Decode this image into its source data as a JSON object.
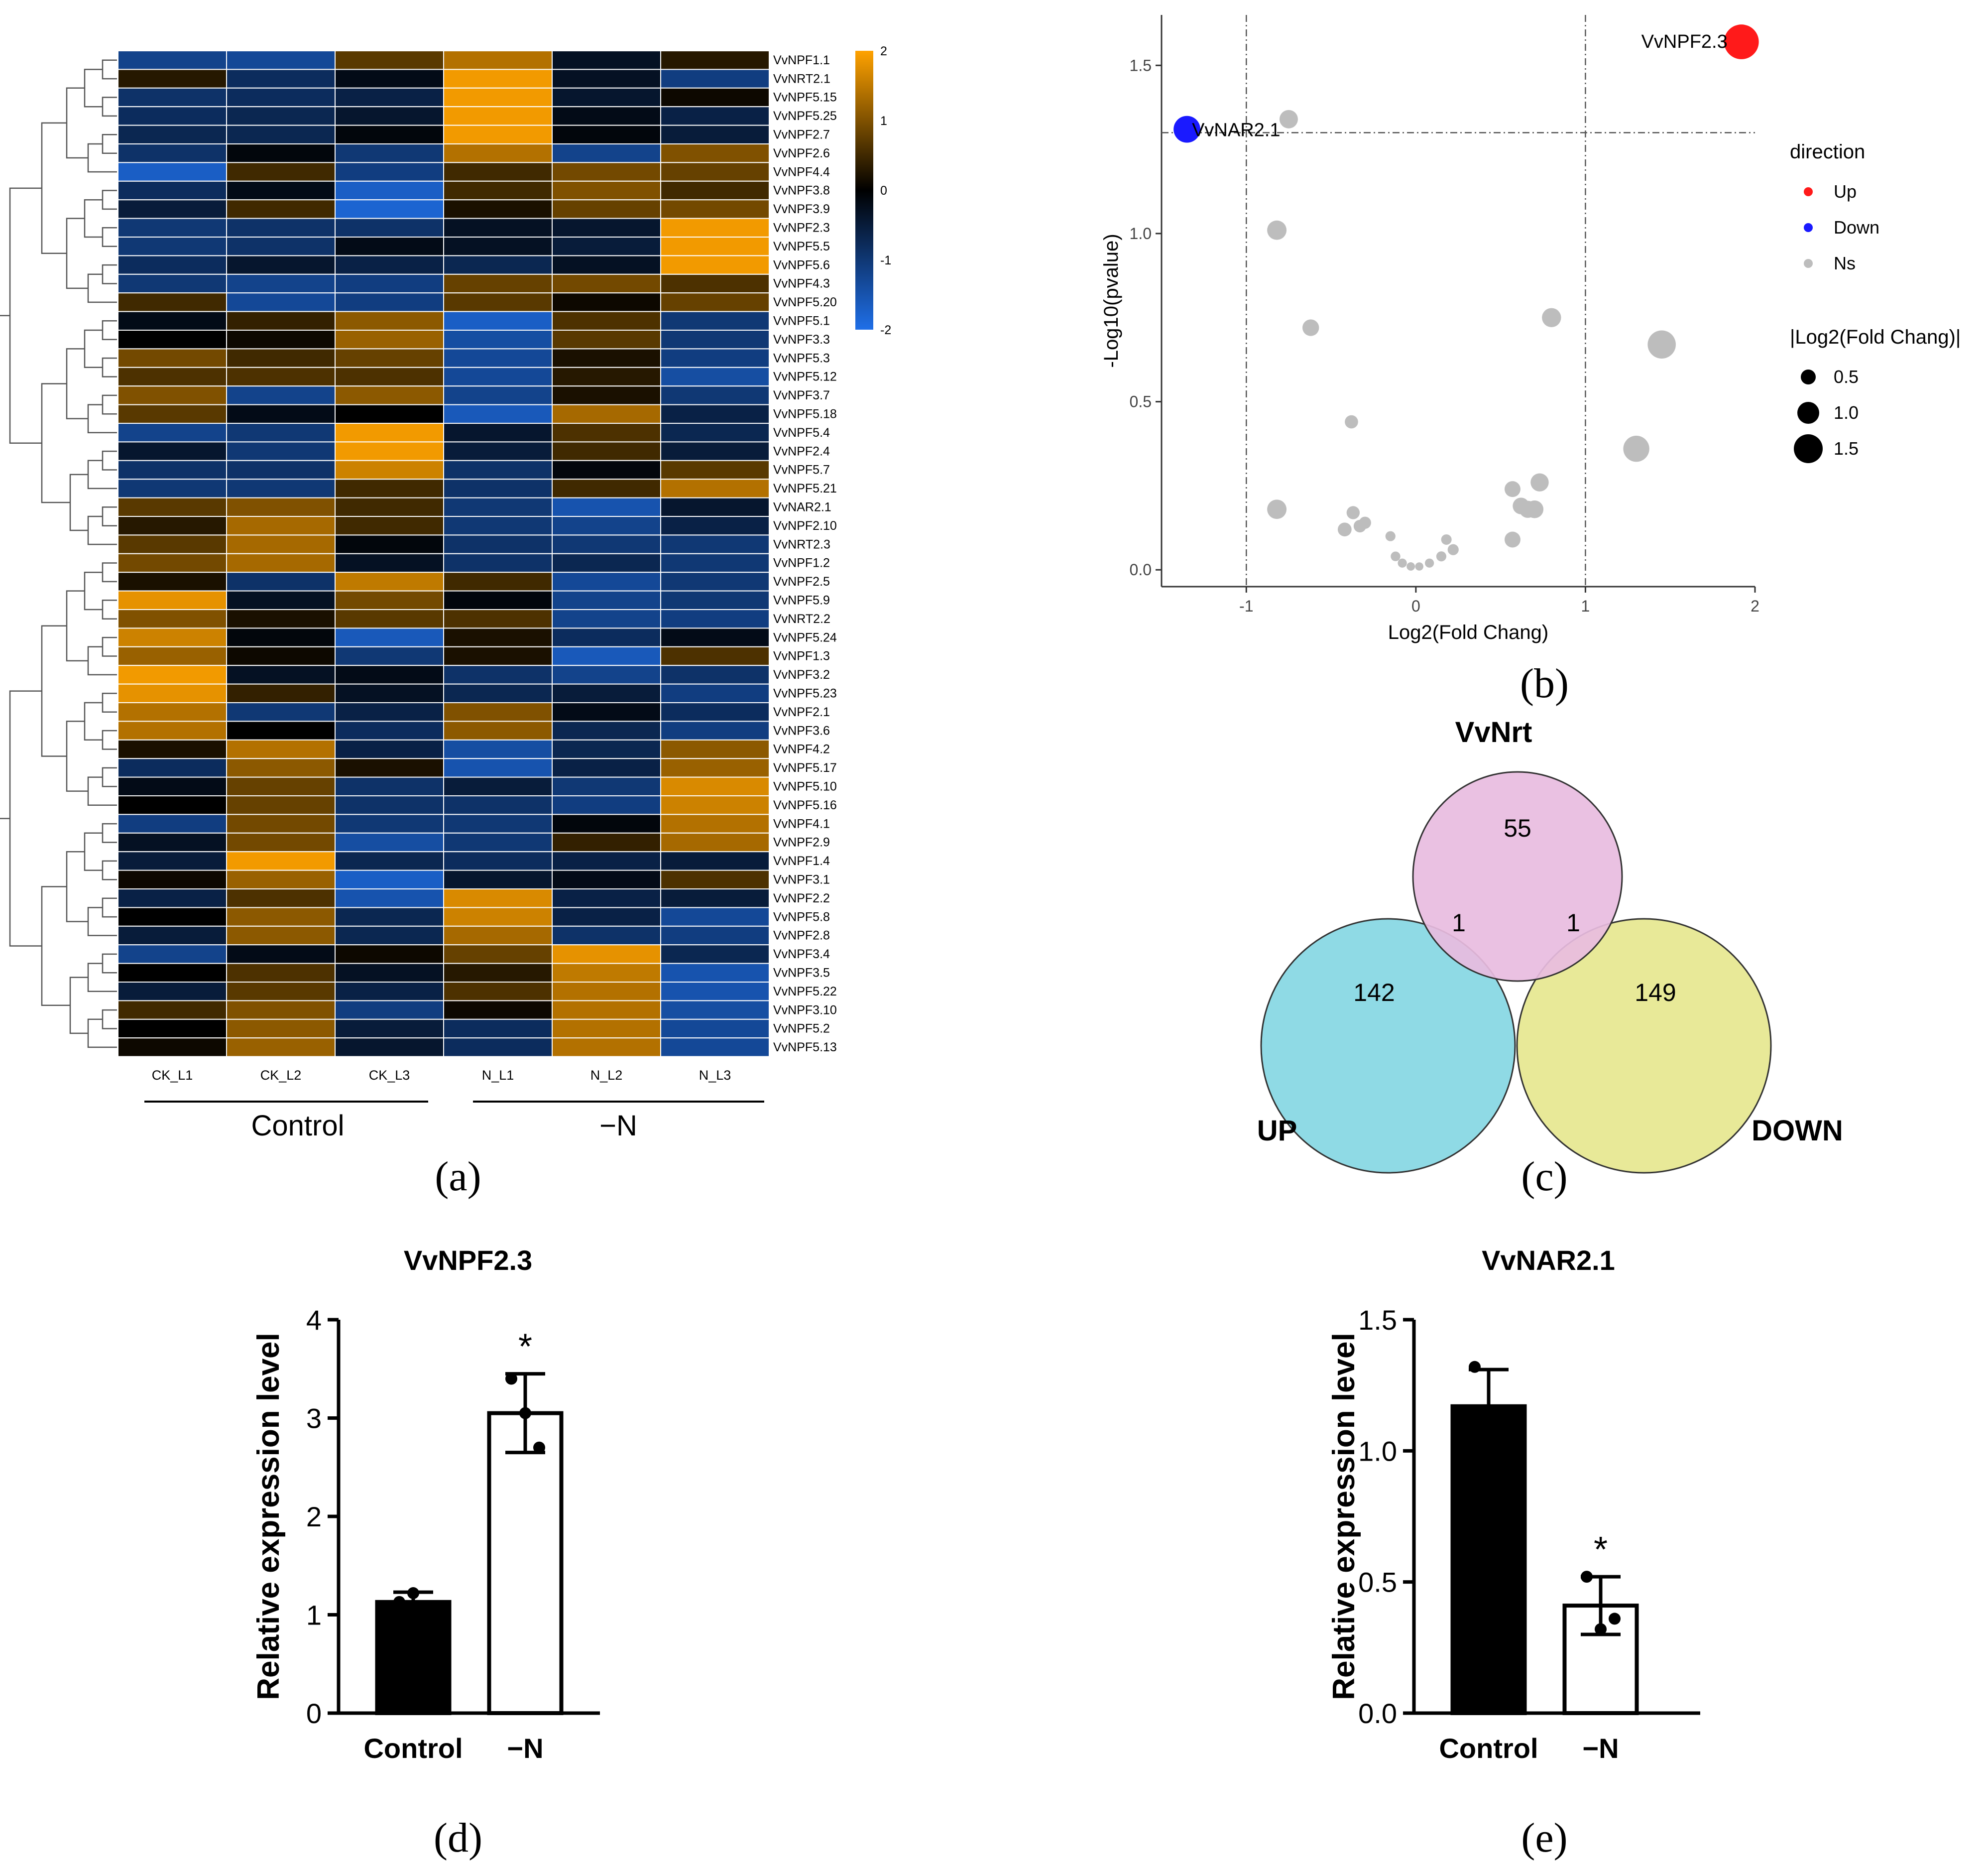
{
  "panel_labels": [
    "(a)",
    "(b)",
    "(c)",
    "(d)",
    "(e)"
  ],
  "chart_data": [
    {
      "id": "a",
      "type": "heatmap",
      "columns": [
        "CK_L1",
        "CK_L2",
        "CK_L3",
        "N_L1",
        "N_L2",
        "N_L3"
      ],
      "groups": [
        "Control",
        "−N"
      ],
      "rows": [
        "VvNPF1.1",
        "VvNRT2.1",
        "VvNPF5.15",
        "VvNPF5.25",
        "VvNPF2.7",
        "VvNPF2.6",
        "VvNPF4.4",
        "VvNPF3.8",
        "VvNPF3.9",
        "VvNPF2.3",
        "VvNPF5.5",
        "VvNPF5.6",
        "VvNPF4.3",
        "VvNPF5.20",
        "VvNPF5.1",
        "VvNPF3.3",
        "VvNPF5.3",
        "VvNPF5.12",
        "VvNPF3.7",
        "VvNPF5.18",
        "VvNPF5.4",
        "VvNPF2.4",
        "VvNPF5.7",
        "VvNPF5.21",
        "VvNAR2.1",
        "VvNPF2.10",
        "VvNRT2.3",
        "VvNPF1.2",
        "VvNPF2.5",
        "VvNPF5.9",
        "VvNRT2.2",
        "VvNPF5.24",
        "VvNPF1.3",
        "VvNPF3.2",
        "VvNPF5.23",
        "VvNPF2.1",
        "VvNPF3.6",
        "VvNPF4.2",
        "VvNPF5.17",
        "VvNPF5.10",
        "VvNPF5.16",
        "VvNPF4.1",
        "VvNPF2.9",
        "VvNPF1.4",
        "VvNPF3.1",
        "VvNPF2.2",
        "VvNPF5.8",
        "VvNPF2.8",
        "VvNPF3.4",
        "VvNPF3.5",
        "VvNPF5.22",
        "VvNPF3.10",
        "VvNPF5.2",
        "VvNPF5.13"
      ],
      "values": [
        [
          -1.2,
          -1.3,
          0.7,
          1.4,
          -0.3,
          0.3
        ],
        [
          0.3,
          -0.8,
          -0.2,
          1.9,
          -0.3,
          -1.1
        ],
        [
          -0.9,
          -0.8,
          -0.6,
          1.9,
          -0.4,
          0.1
        ],
        [
          -0.8,
          -0.7,
          -0.4,
          1.9,
          -0.2,
          -0.6
        ],
        [
          -0.7,
          -0.7,
          -0.1,
          1.9,
          -0.1,
          -0.5
        ],
        [
          -0.9,
          -0.1,
          -1.0,
          1.4,
          -1.2,
          1.0
        ],
        [
          -1.7,
          0.5,
          -1.1,
          0.5,
          0.9,
          0.8
        ],
        [
          -0.8,
          -0.2,
          -1.7,
          0.5,
          1.0,
          0.5
        ],
        [
          -0.5,
          0.5,
          -1.8,
          0.2,
          0.8,
          0.9
        ],
        [
          -1.0,
          -0.9,
          -0.9,
          -0.3,
          -0.4,
          1.9
        ],
        [
          -1.0,
          -0.9,
          -0.2,
          -0.3,
          -0.5,
          1.9
        ],
        [
          -0.8,
          -0.4,
          -0.6,
          -0.7,
          -0.3,
          1.9
        ],
        [
          -1.0,
          -1.2,
          -1.1,
          0.8,
          0.9,
          0.6
        ],
        [
          0.5,
          -1.3,
          -1.1,
          0.7,
          0.1,
          0.8
        ],
        [
          -0.2,
          0.4,
          1.1,
          -1.7,
          0.6,
          -1.0
        ],
        [
          0.0,
          0.1,
          1.2,
          -1.4,
          0.7,
          -1.0
        ],
        [
          0.9,
          0.5,
          0.8,
          -1.3,
          0.2,
          -1.1
        ],
        [
          0.6,
          0.6,
          0.6,
          -1.3,
          0.3,
          -1.4
        ],
        [
          1.0,
          -1.2,
          1.1,
          -1.2,
          0.2,
          -1.0
        ],
        [
          0.7,
          -0.2,
          0.0,
          -1.6,
          1.3,
          -0.6
        ],
        [
          -1.2,
          -1.0,
          1.9,
          -0.4,
          0.6,
          -0.7
        ],
        [
          -0.4,
          -1.0,
          1.9,
          -0.5,
          0.5,
          -0.5
        ],
        [
          -0.9,
          -0.9,
          1.6,
          -0.9,
          -0.1,
          0.7
        ],
        [
          -1.0,
          -1.0,
          0.5,
          -0.9,
          0.5,
          1.4
        ],
        [
          0.7,
          1.0,
          0.5,
          -1.0,
          -1.5,
          -0.4
        ],
        [
          0.3,
          1.3,
          0.5,
          -1.0,
          -1.2,
          -0.6
        ],
        [
          0.7,
          1.3,
          -0.1,
          -0.9,
          -1.0,
          -1.0
        ],
        [
          0.9,
          1.3,
          -0.3,
          -0.9,
          -0.7,
          -1.0
        ],
        [
          0.2,
          -0.9,
          1.5,
          0.5,
          -1.3,
          -1.0
        ],
        [
          1.8,
          -0.3,
          0.9,
          -0.1,
          -1.2,
          -1.0
        ],
        [
          1.0,
          0.2,
          0.7,
          0.6,
          -1.2,
          -1.1
        ],
        [
          1.6,
          -0.1,
          -1.6,
          0.2,
          -0.8,
          -0.2
        ],
        [
          1.2,
          0.1,
          -1.0,
          0.2,
          -1.6,
          0.6
        ],
        [
          1.9,
          -0.3,
          -0.2,
          -0.9,
          -1.2,
          -0.9
        ],
        [
          1.8,
          0.4,
          -0.3,
          -0.7,
          -0.5,
          -1.1
        ],
        [
          1.4,
          -1.0,
          -0.6,
          1.0,
          -0.2,
          -0.8
        ],
        [
          1.4,
          0.0,
          -0.8,
          1.1,
          -0.7,
          -1.1
        ],
        [
          0.2,
          1.4,
          -0.6,
          -1.4,
          -0.7,
          1.1
        ],
        [
          -0.8,
          1.1,
          0.2,
          -1.5,
          -0.6,
          1.2
        ],
        [
          -0.2,
          0.8,
          -0.9,
          -0.5,
          -1.0,
          1.7
        ],
        [
          0.0,
          0.8,
          -0.9,
          -0.9,
          -1.1,
          1.6
        ],
        [
          -1.1,
          0.9,
          -1.0,
          -1.0,
          -0.1,
          1.4
        ],
        [
          -0.3,
          0.9,
          -1.4,
          -1.0,
          0.4,
          1.3
        ],
        [
          -0.5,
          1.9,
          -0.7,
          -0.8,
          -0.6,
          -0.5
        ],
        [
          0.1,
          1.2,
          -1.7,
          -0.4,
          -0.2,
          0.6
        ],
        [
          -0.6,
          0.6,
          -1.5,
          1.7,
          -0.6,
          -0.5
        ],
        [
          0.0,
          1.1,
          -0.7,
          1.6,
          -0.6,
          -1.3
        ],
        [
          -0.5,
          1.1,
          -0.7,
          1.3,
          -0.9,
          -1.1
        ],
        [
          -1.2,
          -0.2,
          0.1,
          0.8,
          1.8,
          -0.7
        ],
        [
          0.0,
          0.6,
          -0.3,
          0.3,
          1.5,
          -1.5
        ],
        [
          -0.5,
          0.7,
          -0.6,
          0.6,
          1.4,
          -1.5
        ],
        [
          0.5,
          1.0,
          -1.1,
          0.1,
          1.4,
          -1.4
        ],
        [
          0.0,
          1.1,
          -0.5,
          -0.8,
          1.4,
          -1.3
        ],
        [
          0.1,
          1.2,
          -0.4,
          -0.8,
          1.4,
          -1.3
        ]
      ],
      "scale_ticks": [
        2,
        1,
        0,
        -1,
        -2
      ],
      "colors": {
        "low": "#1f6fe8",
        "mid": "#000000",
        "high": "#ffa200"
      }
    },
    {
      "id": "b",
      "type": "scatter",
      "xlabel": "Log2(Fold Chang)",
      "ylabel": "-Log10(pvalue)",
      "xlim": [
        -1.5,
        2.0
      ],
      "ylim": [
        -0.05,
        1.65
      ],
      "xticks": [
        -1,
        0,
        1,
        2
      ],
      "yticks": [
        0.0,
        0.5,
        1.0,
        1.5
      ],
      "thresholds": {
        "x": [
          -1,
          1
        ],
        "y": 1.3
      },
      "legend": {
        "direction_title": "direction",
        "direction_items": [
          {
            "label": "Up",
            "color": "#ff1a1a"
          },
          {
            "label": "Down",
            "color": "#1a1aff"
          },
          {
            "label": "Ns",
            "color": "#bdbdbd"
          }
        ],
        "size_title": "|Log2(Fold Chang)|",
        "size_items": [
          {
            "label": "0.5",
            "value": 0.5
          },
          {
            "label": "1.0",
            "value": 1.0
          },
          {
            "label": "1.5",
            "value": 1.5
          }
        ]
      },
      "labels": [
        {
          "text": "VvNPF2.3",
          "x": 1.92,
          "y": 1.57
        },
        {
          "text": "VvNAR2.1",
          "x": -1.35,
          "y": 1.31
        }
      ],
      "points": [
        {
          "x": 1.92,
          "y": 1.57,
          "d": "Up"
        },
        {
          "x": -1.35,
          "y": 1.31,
          "d": "Down"
        },
        {
          "x": -0.75,
          "y": 1.34,
          "d": "Ns"
        },
        {
          "x": -0.82,
          "y": 1.01,
          "d": "Ns"
        },
        {
          "x": -0.62,
          "y": 0.72,
          "d": "Ns"
        },
        {
          "x": 0.8,
          "y": 0.75,
          "d": "Ns"
        },
        {
          "x": 1.45,
          "y": 0.67,
          "d": "Ns"
        },
        {
          "x": 1.3,
          "y": 0.36,
          "d": "Ns"
        },
        {
          "x": -0.38,
          "y": 0.44,
          "d": "Ns"
        },
        {
          "x": -0.82,
          "y": 0.18,
          "d": "Ns"
        },
        {
          "x": -0.37,
          "y": 0.17,
          "d": "Ns"
        },
        {
          "x": -0.42,
          "y": 0.12,
          "d": "Ns"
        },
        {
          "x": -0.33,
          "y": 0.13,
          "d": "Ns"
        },
        {
          "x": -0.3,
          "y": 0.14,
          "d": "Ns"
        },
        {
          "x": -0.15,
          "y": 0.1,
          "d": "Ns"
        },
        {
          "x": -0.12,
          "y": 0.04,
          "d": "Ns"
        },
        {
          "x": -0.08,
          "y": 0.02,
          "d": "Ns"
        },
        {
          "x": -0.03,
          "y": 0.01,
          "d": "Ns"
        },
        {
          "x": 0.02,
          "y": 0.01,
          "d": "Ns"
        },
        {
          "x": 0.08,
          "y": 0.02,
          "d": "Ns"
        },
        {
          "x": 0.15,
          "y": 0.04,
          "d": "Ns"
        },
        {
          "x": 0.18,
          "y": 0.09,
          "d": "Ns"
        },
        {
          "x": 0.22,
          "y": 0.06,
          "d": "Ns"
        },
        {
          "x": 0.57,
          "y": 0.24,
          "d": "Ns"
        },
        {
          "x": 0.62,
          "y": 0.19,
          "d": "Ns"
        },
        {
          "x": 0.66,
          "y": 0.18,
          "d": "Ns"
        },
        {
          "x": 0.7,
          "y": 0.18,
          "d": "Ns"
        },
        {
          "x": 0.73,
          "y": 0.26,
          "d": "Ns"
        },
        {
          "x": 0.57,
          "y": 0.09,
          "d": "Ns"
        }
      ]
    },
    {
      "id": "c",
      "type": "venn",
      "sets": [
        {
          "name": "VvNrt",
          "color": "#e8bcdf"
        },
        {
          "name": "UP",
          "color": "#8fdae5"
        },
        {
          "name": "DOWN",
          "color": "#e8e998"
        }
      ],
      "regions": {
        "VvNrt_only": "55",
        "VvNrt_UP": "1",
        "VvNrt_DOWN": "1",
        "UP_only": "142",
        "DOWN_only": "149"
      }
    },
    {
      "id": "d",
      "type": "bar",
      "title": "VvNPF2.3",
      "ylabel": "Relative expression level",
      "categories": [
        "Control",
        "−N"
      ],
      "values": [
        1.13,
        3.05
      ],
      "errors": [
        0.1,
        0.4
      ],
      "points": [
        [
          1.13,
          1.22,
          1.05
        ],
        [
          3.4,
          3.05,
          2.7
        ]
      ],
      "significance": [
        "",
        "*"
      ],
      "ylim": [
        0,
        4
      ],
      "yticks": [
        "0",
        "1",
        "2",
        "3",
        "4"
      ],
      "bar_fill": [
        "#000000",
        "#ffffff"
      ]
    },
    {
      "id": "e",
      "type": "bar",
      "title": "VvNAR2.1",
      "ylabel": "Relative expression level",
      "categories": [
        "Control",
        "−N"
      ],
      "values": [
        1.17,
        0.41
      ],
      "errors": [
        0.14,
        0.11
      ],
      "points": [
        [
          1.32,
          1.1,
          1.1
        ],
        [
          0.52,
          0.32,
          0.36
        ]
      ],
      "significance": [
        "",
        "*"
      ],
      "ylim": [
        0,
        1.5
      ],
      "yticks": [
        "0.0",
        "0.5",
        "1.0",
        "1.5"
      ],
      "bar_fill": [
        "#000000",
        "#ffffff"
      ]
    }
  ]
}
